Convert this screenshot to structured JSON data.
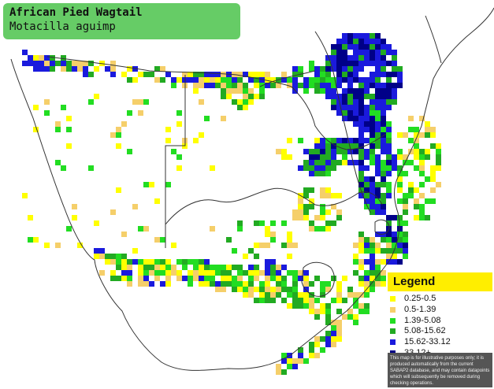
{
  "title": "African Pied Wagtail",
  "subtitle": "Motacilla aguimp",
  "legend": {
    "title": "Legend",
    "items": [
      {
        "label": "0.25-0.5",
        "color": "#ffff00"
      },
      {
        "label": "0.5-1.39",
        "color": "#f5cf6a"
      },
      {
        "label": "1.39-5.08",
        "color": "#22dd22"
      },
      {
        "label": "5.08-15.62",
        "color": "#22aa22"
      },
      {
        "label": "15.62-33.12",
        "color": "#1a1add"
      },
      {
        "label": "33.12+",
        "color": "#000088"
      }
    ],
    "disclaimer": "This map is for illustrative purposes only; it is produced automatically from the current SABAP2 database, and may contain datapoints which will subsequently be removed during checking operations."
  },
  "colors": {
    "background": "#ffffff",
    "title_box": "#66cc66",
    "legend_header": "#ffee00",
    "disclaimer_bg": "#555555",
    "borders": "#333333"
  }
}
